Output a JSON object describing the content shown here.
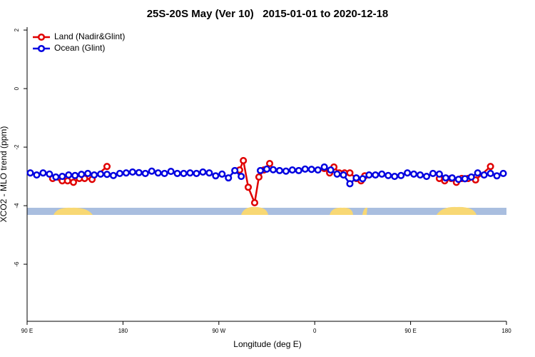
{
  "chart_data": {
    "type": "line",
    "title": "25S-20S May (Ver 10)   2015-01-01 to 2020-12-18",
    "x_label": "Longitude (deg E)",
    "y_label": "XCO2 - MLO trend (ppm)",
    "xlim": [
      90,
      540
    ],
    "xticks": [
      {
        "value": 90,
        "label": "90 E"
      },
      180,
      {
        "value": 270,
        "label": "90 W"
      },
      {
        "value": 360,
        "label": "0"
      },
      {
        "value": 450,
        "label": "90 E"
      },
      {
        "value": 540,
        "label": "180"
      }
    ],
    "ylim": [
      -7.95,
      2.1
    ],
    "yticks": [
      2,
      0,
      -2,
      -4,
      -6
    ],
    "legend": "top-left",
    "series": [
      {
        "name": "Land (Nadir&Glint)",
        "color": "#e00000",
        "x": [
          114,
          123,
          128,
          133.5,
          139,
          144,
          151,
          165,
          null,
          289.5,
          293,
          297.6,
          303.6,
          307.6,
          312.3,
          317.7,
          null,
          369,
          374,
          378,
          383,
          388,
          393,
          399,
          403.5,
          407,
          null,
          477,
          482,
          488,
          493,
          498,
          504,
          511,
          525
        ],
        "values": [
          -3.07,
          -3.15,
          -3.15,
          -3.2,
          -3.07,
          -3.07,
          -3.1,
          -2.66,
          null,
          -2.78,
          -2.46,
          -3.37,
          -3.9,
          -3.02,
          -2.78,
          -2.56,
          null,
          -2.73,
          -2.88,
          -2.68,
          -2.88,
          -2.88,
          -2.88,
          -3.07,
          -3.15,
          -2.98,
          null,
          -3.07,
          -3.15,
          -3.07,
          -3.2,
          -3.07,
          -3.07,
          -3.12,
          -2.66
        ]
      },
      {
        "name": "Ocean (Glint)",
        "color": "#0000e0",
        "x": [
          93,
          99,
          105,
          111,
          117,
          123,
          129,
          135,
          141,
          147,
          153,
          159,
          165,
          171,
          177,
          183,
          189,
          195,
          201,
          207,
          213,
          219,
          225,
          231,
          237,
          243,
          249,
          255,
          261,
          267,
          273,
          279,
          285,
          291,
          297,
          303,
          309,
          315,
          321,
          327,
          333,
          339,
          345,
          351,
          357,
          363,
          369,
          375,
          381,
          387,
          393,
          399,
          405,
          411,
          417,
          423,
          429,
          435,
          441,
          447,
          453,
          459,
          465,
          471,
          477,
          483,
          489,
          495,
          501,
          507,
          513,
          519,
          525,
          531,
          537
        ],
        "values": [
          -2.88,
          -2.95,
          -2.88,
          -2.92,
          -3.02,
          -3.0,
          -2.95,
          -2.97,
          -2.93,
          -2.9,
          -2.95,
          -2.92,
          -2.93,
          -2.97,
          -2.9,
          -2.88,
          -2.85,
          -2.87,
          -2.9,
          -2.82,
          -2.88,
          -2.9,
          -2.83,
          -2.9,
          -2.9,
          -2.88,
          -2.9,
          -2.85,
          -2.88,
          -2.98,
          -2.92,
          -3.05,
          -2.8,
          -3.0,
          null,
          null,
          -2.8,
          -2.75,
          -2.77,
          -2.8,
          -2.82,
          -2.78,
          -2.8,
          -2.75,
          -2.76,
          -2.78,
          -2.68,
          -2.78,
          -2.92,
          -2.95,
          -3.25,
          -3.05,
          -3.08,
          -2.95,
          -2.95,
          -2.92,
          -2.97,
          -3.0,
          -2.97,
          -2.88,
          -2.92,
          -2.95,
          -3.0,
          -2.9,
          -2.92,
          -3.05,
          -3.05,
          -3.1,
          -3.08,
          -3.02,
          -2.88,
          -2.95,
          -2.9,
          -2.98,
          -2.9
        ]
      }
    ]
  }
}
